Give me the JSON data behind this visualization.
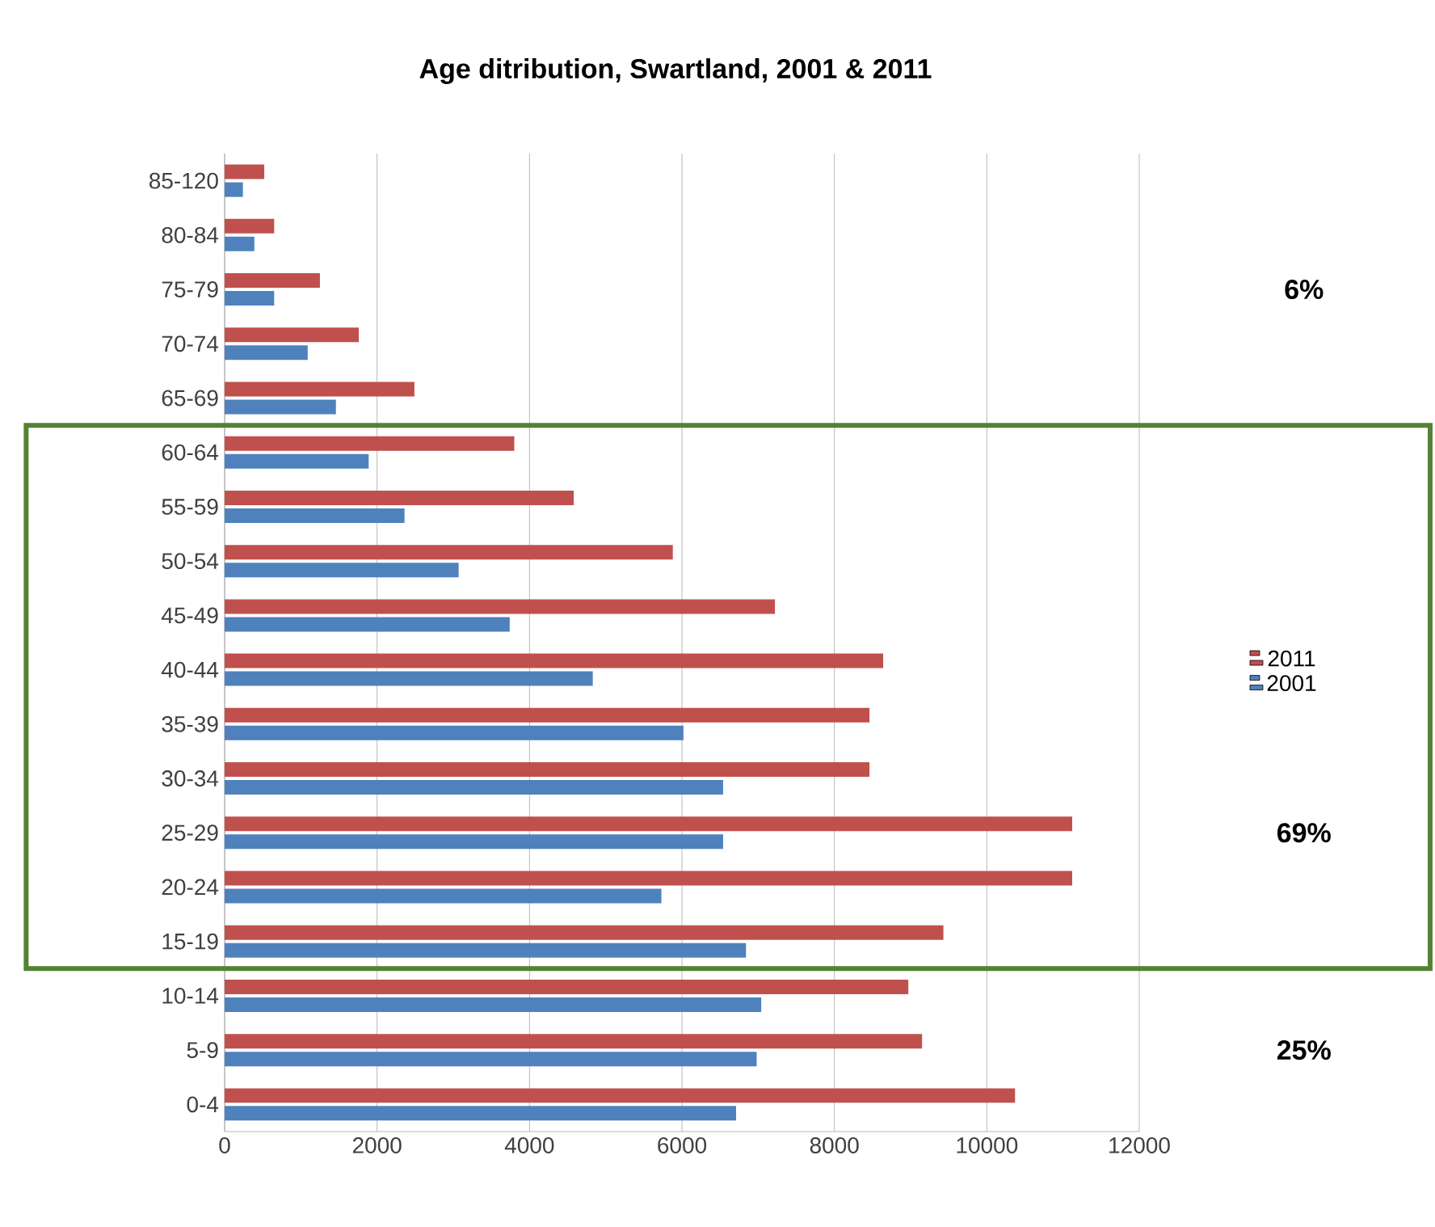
{
  "chart_data": {
    "type": "bar",
    "orientation": "horizontal",
    "title": "Age ditribution, Swartland, 2001 & 2011",
    "categories": [
      "85-120",
      "80-84",
      "75-79",
      "70-74",
      "65-69",
      "60-64",
      "55-59",
      "50-54",
      "45-49",
      "40-44",
      "35-39",
      "30-34",
      "25-29",
      "20-24",
      "15-19",
      "10-14",
      "5-9",
      "0-4"
    ],
    "series": [
      {
        "name": "2001",
        "color": "#4f81bd",
        "values": [
          240,
          390,
          650,
          1090,
          1460,
          1890,
          2360,
          3070,
          3740,
          4830,
          6020,
          6540,
          6540,
          5730,
          6840,
          7040,
          6980,
          6710
        ]
      },
      {
        "name": "2011",
        "color": "#c0504d",
        "values": [
          520,
          650,
          1250,
          1760,
          2490,
          3800,
          4580,
          5880,
          7220,
          8640,
          8460,
          8460,
          11120,
          11120,
          9430,
          8970,
          9150,
          10370
        ]
      }
    ],
    "xlim": [
      0,
      12000
    ],
    "xticks": [
      0,
      2000,
      4000,
      6000,
      8000,
      10000,
      12000
    ],
    "grid": "x",
    "legend": "right",
    "annotations": [
      "6%",
      "69%",
      "25%"
    ]
  }
}
